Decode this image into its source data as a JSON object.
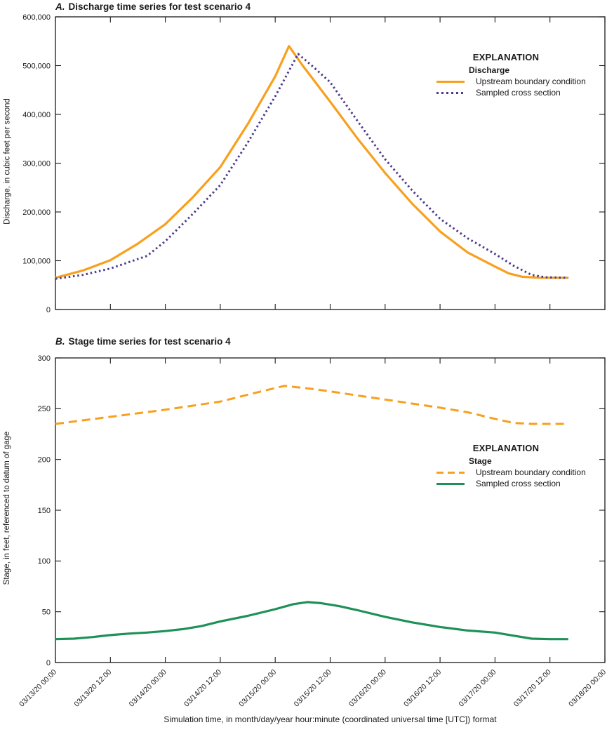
{
  "figure_caption": "",
  "x_axis": {
    "label": "Simulation time, in month/day/year hour:minute (coordinated universal time [UTC]) format",
    "xlim_hours": [
      0,
      120
    ],
    "tick_hours": [
      0,
      12,
      24,
      36,
      48,
      60,
      72,
      84,
      96,
      108,
      120
    ],
    "tick_labels": [
      "03/13/20 00:00",
      "03/13/20 12:00",
      "03/14/20 00:00",
      "03/14/20 12:00",
      "03/15/20 00:00",
      "03/15/20 12:00",
      "03/16/20 00:00",
      "03/16/20 12:00",
      "03/17/20 00:00",
      "03/17/20 12:00",
      "03/18/20 00:00"
    ]
  },
  "chart_data": [
    {
      "type": "line",
      "title_prefix": "A.",
      "title": "Discharge time series for test scenario 4",
      "ylabel": "Discharge, in cubic feet per second",
      "ylim": [
        0,
        600000
      ],
      "y_tick_values": [
        0,
        100000,
        200000,
        300000,
        400000,
        500000,
        600000
      ],
      "y_tick_labels": [
        "0",
        "100,000",
        "200,000",
        "300,000",
        "400,000",
        "500,000",
        "600,000"
      ],
      "grid": false,
      "x_tick_labels_shown": false,
      "legend": {
        "heading": "EXPLANATION",
        "group": "Discharge",
        "position": "upper right"
      },
      "series": [
        {
          "name": "Upstream boundary condition",
          "style": "solid",
          "color": "#F8A01E",
          "x_hours": [
            0,
            6,
            12,
            18,
            24,
            30,
            36,
            42,
            48,
            51,
            54,
            60,
            66,
            72,
            78,
            84,
            90,
            96,
            99,
            102,
            106,
            112
          ],
          "y": [
            65000,
            80000,
            101000,
            135000,
            175000,
            230000,
            292000,
            380000,
            478000,
            540000,
            500000,
            426000,
            350000,
            280000,
            216000,
            160000,
            117000,
            88000,
            74000,
            67000,
            65000,
            65000
          ]
        },
        {
          "name": "Sampled cross section",
          "style": "dotted",
          "color": "#4B3B8F",
          "x_hours": [
            0,
            6,
            12,
            16,
            20,
            24,
            30,
            36,
            42,
            48,
            53,
            56,
            60,
            66,
            72,
            78,
            84,
            90,
            96,
            100,
            104,
            107,
            112
          ],
          "y": [
            63000,
            71000,
            84000,
            97000,
            110000,
            140000,
            196000,
            255000,
            342000,
            437000,
            524000,
            500000,
            466000,
            386000,
            308000,
            243000,
            186000,
            146000,
            114000,
            90000,
            71000,
            66000,
            65000
          ]
        }
      ]
    },
    {
      "type": "line",
      "title_prefix": "B.",
      "title": "Stage time series for test scenario 4",
      "ylabel": "Stage, in feet, referenced to datum of gage",
      "ylim": [
        0,
        300
      ],
      "y_tick_values": [
        0,
        50,
        100,
        150,
        200,
        250,
        300
      ],
      "y_tick_labels": [
        "0",
        "50",
        "100",
        "150",
        "200",
        "250",
        "300"
      ],
      "grid": false,
      "x_tick_labels_shown": true,
      "legend": {
        "heading": "EXPLANATION",
        "group": "Stage",
        "position": "center right"
      },
      "series": [
        {
          "name": "Upstream boundary condition",
          "style": "dashed",
          "color": "#F8A01E",
          "x_hours": [
            0,
            12,
            24,
            36,
            44,
            50,
            56,
            60,
            72,
            84,
            90,
            96,
            100,
            104,
            112
          ],
          "y": [
            235,
            242,
            249,
            257,
            266,
            272.5,
            269.5,
            267,
            259,
            251,
            246.5,
            240,
            236,
            235,
            235
          ]
        },
        {
          "name": "Sampled cross section",
          "style": "solid",
          "color": "#1E9158",
          "x_hours": [
            0,
            4,
            8,
            12,
            16,
            20,
            24,
            28,
            32,
            36,
            42,
            48,
            52,
            55,
            58,
            62,
            66,
            72,
            78,
            84,
            90,
            96,
            100,
            104,
            108,
            112
          ],
          "y": [
            23,
            23.5,
            25,
            27,
            28.5,
            29.5,
            31,
            33,
            36,
            40.5,
            46,
            52.5,
            57.5,
            59.5,
            58.5,
            55.5,
            51.5,
            45,
            39.5,
            35,
            31.5,
            29.5,
            26.5,
            23.5,
            23,
            23
          ]
        }
      ]
    }
  ]
}
